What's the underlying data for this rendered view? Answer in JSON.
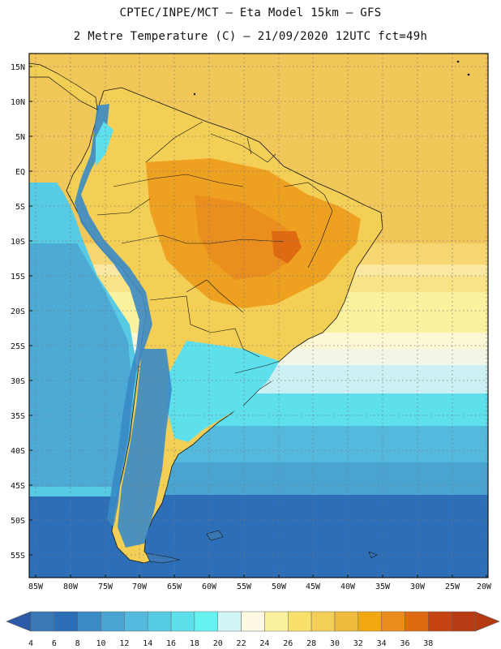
{
  "title": {
    "line1": "CPTEC/INPE/MCT –  Eta Model 15km – GFS",
    "line2": "2 Metre Temperature (C) – 21/09/2020 12UTC fct=49h"
  },
  "lat_labels": [
    "15N",
    "10N",
    "5N",
    "EQ",
    "5S",
    "10S",
    "15S",
    "20S",
    "25S",
    "30S",
    "35S",
    "40S",
    "45S",
    "50S",
    "55S"
  ],
  "lon_labels": [
    "85W",
    "80W",
    "75W",
    "70W",
    "65W",
    "60W",
    "55W",
    "50W",
    "45W",
    "40W",
    "35W",
    "30W",
    "25W",
    "20W"
  ],
  "colorbar": {
    "ticks": [
      "4",
      "6",
      "8",
      "10",
      "12",
      "14",
      "16",
      "18",
      "20",
      "22",
      "24",
      "26",
      "28",
      "30",
      "32",
      "34",
      "36",
      "38"
    ],
    "colors": [
      "#3a78b5",
      "#2c6eb8",
      "#3a8ac6",
      "#4aa4d2",
      "#55b8dd",
      "#58cbe4",
      "#5ee0ec",
      "#67f2f2",
      "#d2f5f8",
      "#fdf8e2",
      "#fbf2a0",
      "#f8e06a",
      "#f4cf55",
      "#eebb3c",
      "#f2a810",
      "#e98b1d",
      "#e06a12",
      "#c84312",
      "#b83a12"
    ],
    "min_color": "#2a5aa8",
    "max_color": "#b53a12"
  },
  "colors": {
    "ocean_tropical": "#f2c75a",
    "ocean_subtropical": "#fbf2a0",
    "ocean_cool": "#5ee0ec",
    "ocean_cold": "#4aa4d2",
    "ocean_polar": "#2c6eb8",
    "land_hot": "#eea020",
    "land_warm": "#f4cf55",
    "andes": "#3a8ac6"
  }
}
